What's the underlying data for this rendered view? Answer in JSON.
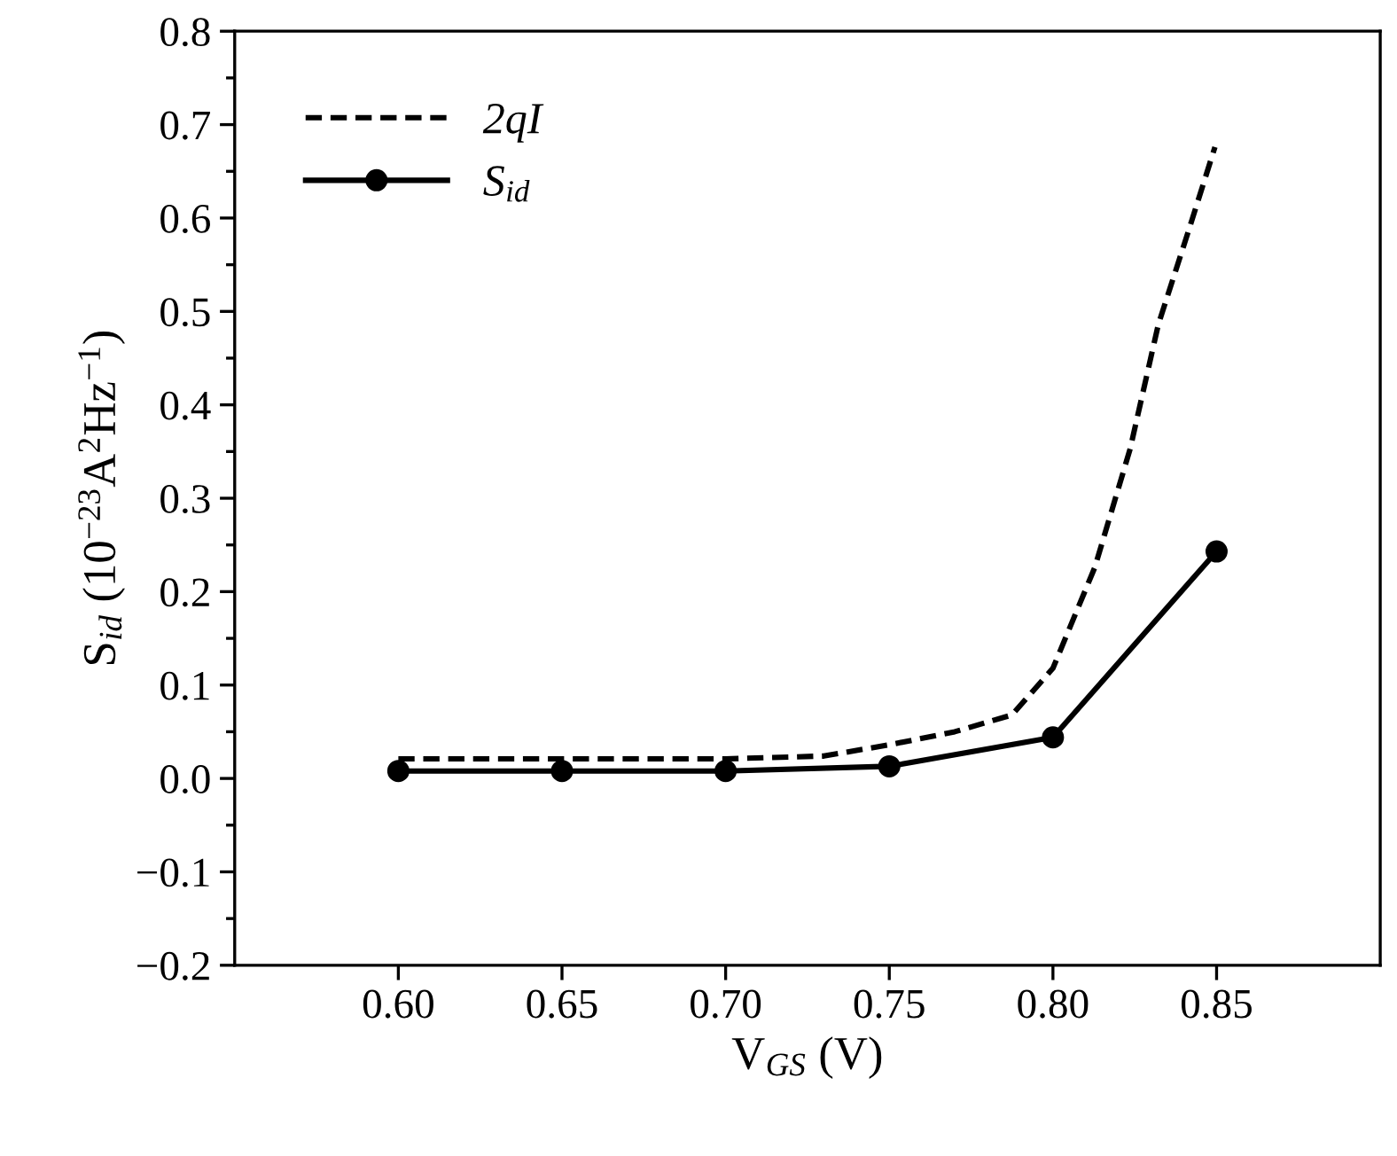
{
  "chart_data": {
    "type": "line",
    "xlabel": "V$_{GS}$ (V)",
    "ylabel": "S$_{id}$ (10$^{−23}$A$^{2}$Hz$^{−1}$)",
    "xlim": [
      0.55,
      0.9
    ],
    "xticks": [
      {
        "value": 0.6,
        "label": "0.60"
      },
      {
        "value": 0.65,
        "label": "0.65"
      },
      {
        "value": 0.7,
        "label": "0.70"
      },
      {
        "value": 0.75,
        "label": "0.75"
      },
      {
        "value": 0.8,
        "label": "0.80"
      },
      {
        "value": 0.85,
        "label": "0.85"
      }
    ],
    "ylim": [
      -0.2,
      0.8
    ],
    "yticks": [
      {
        "value": -0.2,
        "label": "−0.2"
      },
      {
        "value": -0.1,
        "label": "−0.1"
      },
      {
        "value": 0.0,
        "label": "0.0"
      },
      0.1,
      0.2,
      0.3,
      0.4,
      0.5,
      0.6,
      0.7,
      0.8
    ],
    "legend": "top left",
    "grid": false,
    "series": [
      {
        "name": "2qI",
        "color": "#000000",
        "line_style": "dashed",
        "marker": "none",
        "x": [
          0.6,
          0.65,
          0.7,
          0.73,
          0.75,
          0.77,
          0.7875,
          0.8,
          0.8128,
          0.8236,
          0.8322,
          0.8414,
          0.8495
        ],
        "values": [
          0.021,
          0.021,
          0.021,
          0.024,
          0.036,
          0.05,
          0.068,
          0.118,
          0.226,
          0.353,
          0.486,
          0.586,
          0.676
        ]
      },
      {
        "name": "S$_{id}$",
        "color": "#000000",
        "line_style": "solid",
        "marker": "circle",
        "x": [
          0.6,
          0.65,
          0.7,
          0.75,
          0.8,
          0.85
        ],
        "values": [
          0.008,
          0.008,
          0.008,
          0.013,
          0.044,
          0.243
        ]
      }
    ]
  }
}
